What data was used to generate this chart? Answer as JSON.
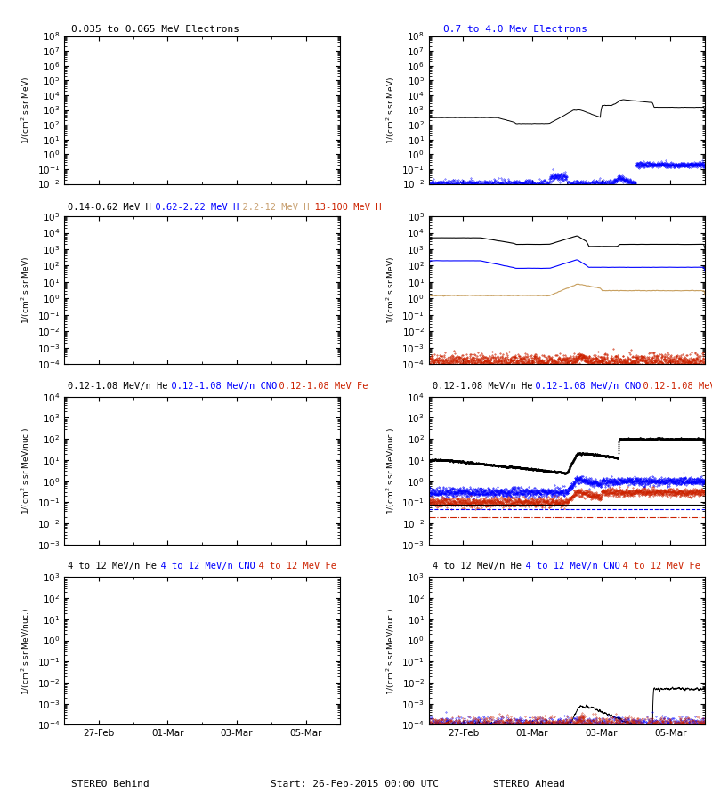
{
  "title_row1_left": "0.035 to 0.065 MeV Electrons",
  "title_row1_right_text": "0.7 to 4.0 Mev Electrons",
  "title_row1_right_color": "#0000ff",
  "title_row2_parts": [
    {
      "text": "0.14-0.62 MeV H",
      "color": "#000000"
    },
    {
      "text": "  0.62-2.22 MeV H",
      "color": "#0000ff"
    },
    {
      "text": "  2.2-12 MeV H",
      "color": "#c8a070"
    },
    {
      "text": "  13-100 MeV H",
      "color": "#cc2200"
    }
  ],
  "title_row3_parts": [
    {
      "text": "0.12-1.08 MeV/n He",
      "color": "#000000"
    },
    {
      "text": "  0.12-1.08 MeV/n CNO",
      "color": "#0000ff"
    },
    {
      "text": "  0.12-1.08 MeV Fe",
      "color": "#cc2200"
    }
  ],
  "title_row4_parts": [
    {
      "text": "4 to 12 MeV/n He",
      "color": "#000000"
    },
    {
      "text": "  4 to 12 MeV/n CNO",
      "color": "#0000ff"
    },
    {
      "text": "  4 to 12 MeV Fe",
      "color": "#cc2200"
    }
  ],
  "xlabel_left": "STEREO Behind",
  "xlabel_center": "Start: 26-Feb-2015 00:00 UTC",
  "xlabel_right": "STEREO Ahead",
  "xtick_labels": [
    "27-Feb",
    "01-Mar",
    "03-Mar",
    "05-Mar"
  ],
  "background_color": "#ffffff",
  "seed": 42,
  "n_points": 2000
}
